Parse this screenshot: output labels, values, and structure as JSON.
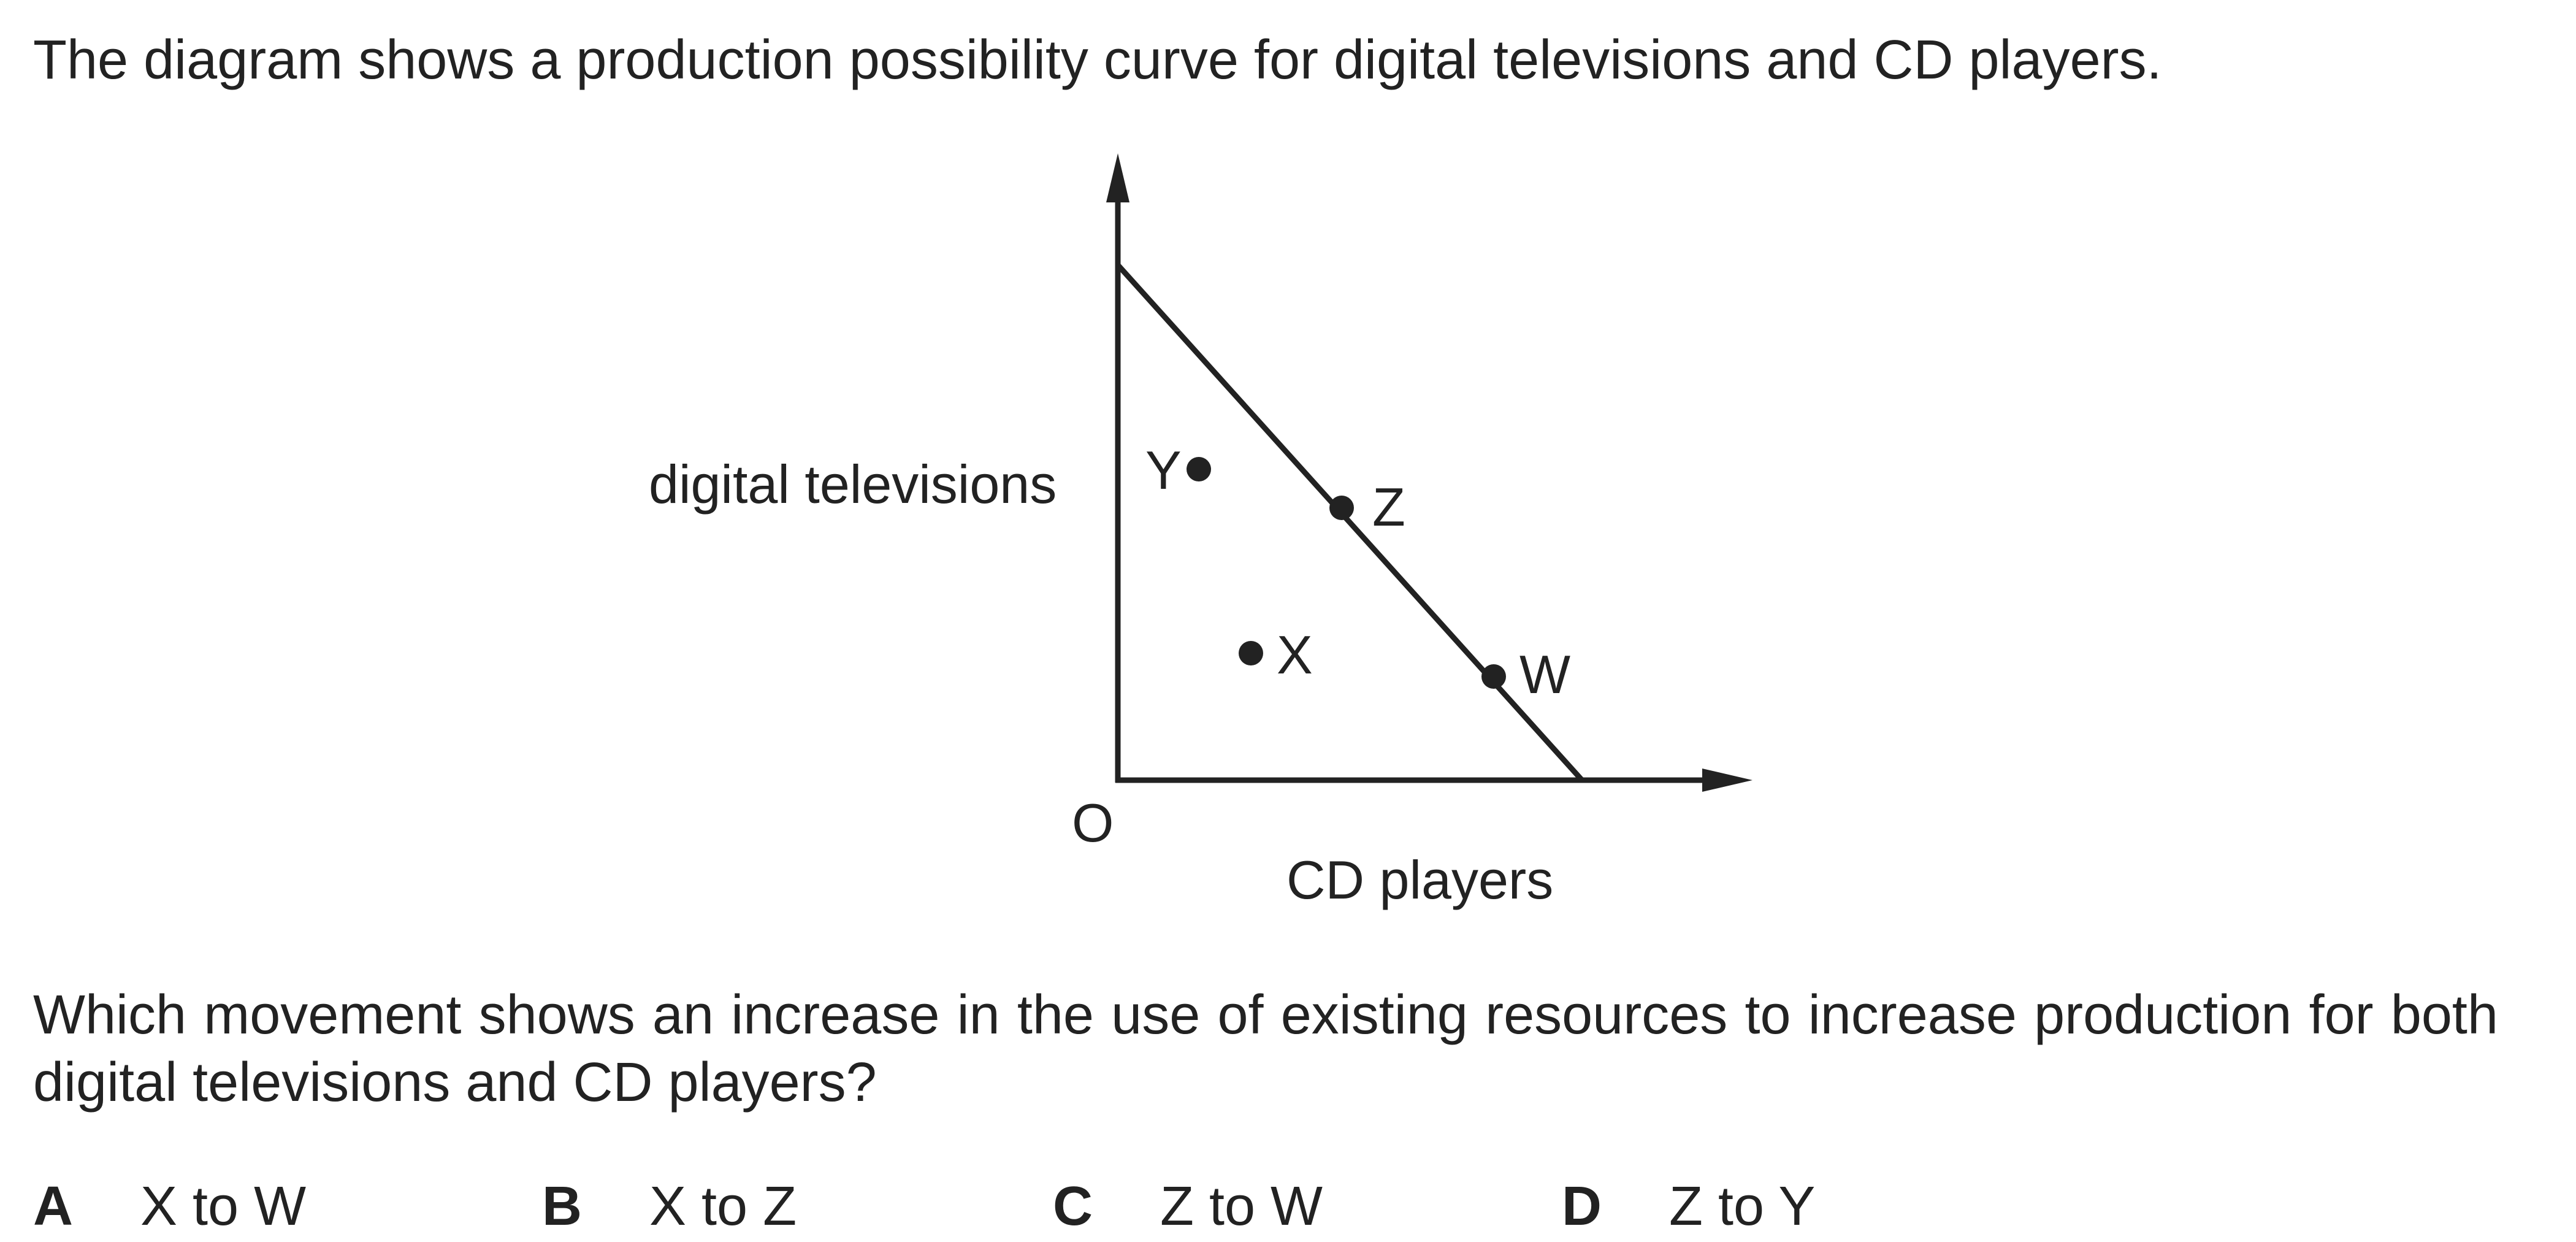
{
  "intro_text": "The diagram shows a production possibility curve for digital televisions and CD players.",
  "diagram": {
    "y_axis_label": "digital televisions",
    "x_axis_label": "CD players",
    "origin_label": "O",
    "points": [
      {
        "label": "Y",
        "position": "inside the curve"
      },
      {
        "label": "Z",
        "position": "on the curve"
      },
      {
        "label": "X",
        "position": "inside the curve"
      },
      {
        "label": "W",
        "position": "on the curve"
      }
    ]
  },
  "question_text": "Which movement shows an increase in the use of existing resources to increase production for both digital televisions and CD players?",
  "options": [
    {
      "letter": "A",
      "text": "X to W"
    },
    {
      "letter": "B",
      "text": "X to Z"
    },
    {
      "letter": "C",
      "text": "Z to W"
    },
    {
      "letter": "D",
      "text": "Z to Y"
    }
  ]
}
